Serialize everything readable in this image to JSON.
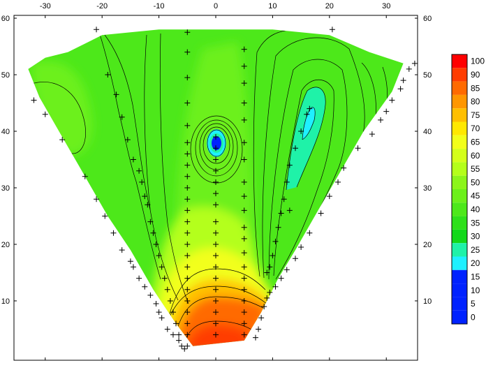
{
  "chart_data": {
    "type": "contour",
    "x_ticks": [
      -30,
      -20,
      -10,
      0,
      10,
      20,
      30
    ],
    "y_ticks": [
      10,
      20,
      30,
      40,
      50,
      60
    ],
    "xlim": [
      -35.5,
      35.5
    ],
    "ylim": [
      -0.5,
      60.5
    ],
    "grid": false,
    "legend_position": "right",
    "colorbar": {
      "levels": [
        100,
        90,
        85,
        80,
        75,
        70,
        65,
        60,
        55,
        50,
        45,
        40,
        35,
        30,
        25,
        20,
        15,
        10,
        5,
        0
      ],
      "colors": [
        "#ff0000",
        "#ff3c00",
        "#ff6a00",
        "#ff9600",
        "#ffbf00",
        "#ffe800",
        "#f2ff1a",
        "#d4ff1a",
        "#b4ff1a",
        "#8cf51a",
        "#6cf01a",
        "#4de81a",
        "#2ee01a",
        "#12d81a",
        "#1ff2a8",
        "#1ff0ff",
        "#0022ff",
        "#0022ff",
        "#0022ff",
        "#0022ff"
      ]
    },
    "regions": [
      {
        "value": 45,
        "color": "#6cf01a"
      },
      {
        "value": 55,
        "color": "#b4ff1a"
      },
      {
        "value": 65,
        "color": "#f2ff1a"
      },
      {
        "value": 75,
        "color": "#ffbf00"
      },
      {
        "value": 85,
        "color": "#ff6a00"
      },
      {
        "value": 90,
        "color": "#ff3c00"
      },
      {
        "value": 22,
        "color": "#1ff2a8"
      },
      {
        "value": 18,
        "color": "#1ff0ff"
      },
      {
        "value": 5,
        "color": "#0022ff"
      }
    ],
    "outline": [
      [
        -33,
        51
      ],
      [
        -30,
        53
      ],
      [
        -26,
        54
      ],
      [
        -20,
        57
      ],
      [
        -10,
        58
      ],
      [
        0,
        58
      ],
      [
        10,
        58
      ],
      [
        20,
        57
      ],
      [
        27,
        54
      ],
      [
        33,
        52
      ],
      [
        31,
        47
      ],
      [
        26,
        40
      ],
      [
        22,
        33
      ],
      [
        18,
        26
      ],
      [
        14,
        19
      ],
      [
        11,
        14
      ],
      [
        8,
        8
      ],
      [
        5,
        3
      ],
      [
        -4,
        2
      ],
      [
        -7,
        6
      ],
      [
        -11,
        12
      ],
      [
        -15,
        19
      ],
      [
        -19,
        25
      ],
      [
        -23,
        32
      ],
      [
        -27,
        39
      ],
      [
        -31,
        46
      ]
    ],
    "sample_points": [
      [
        -5,
        57.5
      ],
      [
        -5,
        54
      ],
      [
        -5,
        49.5
      ],
      [
        -5,
        45
      ],
      [
        -5,
        41
      ],
      [
        -5,
        38
      ],
      [
        -5,
        36
      ],
      [
        -5,
        34
      ],
      [
        -5,
        32
      ],
      [
        -5,
        30
      ],
      [
        -5,
        28
      ],
      [
        -5,
        26
      ],
      [
        -5,
        24
      ],
      [
        -5,
        22
      ],
      [
        -5,
        20
      ],
      [
        -5,
        18
      ],
      [
        -5,
        16
      ],
      [
        -5,
        14
      ],
      [
        -5,
        12
      ],
      [
        -5,
        10
      ],
      [
        -5,
        8
      ],
      [
        -5,
        6
      ],
      [
        -5,
        4
      ],
      [
        -5,
        2
      ],
      [
        0,
        39
      ],
      [
        0,
        37
      ],
      [
        0,
        35
      ],
      [
        0,
        33
      ],
      [
        0,
        31
      ],
      [
        0,
        29
      ],
      [
        0,
        27
      ],
      [
        0,
        24
      ],
      [
        0,
        22
      ],
      [
        0,
        20
      ],
      [
        0,
        18
      ],
      [
        0,
        16
      ],
      [
        0,
        14
      ],
      [
        0,
        12
      ],
      [
        0,
        10
      ],
      [
        0,
        8
      ],
      [
        0,
        6
      ],
      [
        0,
        4
      ],
      [
        5,
        54.5
      ],
      [
        5,
        51.5
      ],
      [
        5,
        48.5
      ],
      [
        5,
        45
      ],
      [
        5,
        42
      ],
      [
        5,
        38
      ],
      [
        5,
        35
      ],
      [
        5,
        31
      ],
      [
        5,
        28.5
      ],
      [
        5,
        26
      ],
      [
        5,
        23
      ],
      [
        5,
        21
      ],
      [
        5,
        18.5
      ],
      [
        5,
        16
      ],
      [
        5,
        14
      ],
      [
        5,
        12
      ],
      [
        5,
        10
      ],
      [
        5,
        8
      ],
      [
        5,
        6
      ],
      [
        5,
        4
      ],
      [
        -21,
        58
      ],
      [
        -19,
        50
      ],
      [
        -17.5,
        46.5
      ],
      [
        -16.5,
        42.5
      ],
      [
        -15.5,
        38.5
      ],
      [
        -14.5,
        35
      ],
      [
        -13.5,
        33
      ],
      [
        -13,
        31
      ],
      [
        -12.5,
        28.5
      ],
      [
        -12,
        27
      ],
      [
        -11.5,
        24
      ],
      [
        -11,
        22
      ],
      [
        -10.5,
        20
      ],
      [
        -10,
        18
      ],
      [
        -9.5,
        16
      ],
      [
        -9,
        14
      ],
      [
        -8.5,
        12
      ],
      [
        -8,
        10
      ],
      [
        -7.5,
        8
      ],
      [
        -7,
        6
      ],
      [
        -6.5,
        4
      ],
      [
        -32,
        45.5
      ],
      [
        -30,
        43
      ],
      [
        -27,
        38.5
      ],
      [
        -23,
        32
      ],
      [
        -21,
        28
      ],
      [
        -19.5,
        25
      ],
      [
        -18,
        22
      ],
      [
        -16.5,
        19
      ],
      [
        -15,
        17
      ],
      [
        -14.5,
        16
      ],
      [
        -13.5,
        14
      ],
      [
        -12.5,
        12.5
      ],
      [
        -11.5,
        11
      ],
      [
        -10.5,
        9.5
      ],
      [
        -10,
        8
      ],
      [
        -9.5,
        7
      ],
      [
        -8.5,
        5
      ],
      [
        -7.5,
        4
      ],
      [
        -6.5,
        3
      ],
      [
        -6,
        2
      ],
      [
        -5.5,
        1.5
      ],
      [
        9,
        15
      ],
      [
        9.5,
        16
      ],
      [
        10,
        18
      ],
      [
        10.5,
        20.5
      ],
      [
        11,
        23
      ],
      [
        11.5,
        25.5
      ],
      [
        12,
        28
      ],
      [
        12.5,
        31
      ],
      [
        13,
        34
      ],
      [
        14,
        37
      ],
      [
        15,
        40
      ],
      [
        16,
        43
      ],
      [
        16.5,
        44
      ],
      [
        13,
        26
      ],
      [
        7,
        3.5
      ],
      [
        7.5,
        5
      ],
      [
        8,
        7
      ],
      [
        8.5,
        9
      ],
      [
        9,
        10.5
      ],
      [
        9.5,
        11.5
      ],
      [
        10.5,
        12.5
      ],
      [
        11.5,
        14
      ],
      [
        12.5,
        15.5
      ],
      [
        14,
        17.5
      ],
      [
        15,
        19.5
      ],
      [
        16.5,
        22
      ],
      [
        18.5,
        25.5
      ],
      [
        20,
        28.5
      ],
      [
        21.5,
        31
      ],
      [
        22.5,
        33.5
      ],
      [
        25,
        37
      ],
      [
        27.5,
        39.5
      ],
      [
        29,
        42
      ],
      [
        30,
        43.5
      ],
      [
        31,
        45.5
      ],
      [
        32.5,
        47.5
      ],
      [
        33,
        49
      ],
      [
        34,
        51
      ],
      [
        35,
        52
      ],
      [
        20.5,
        58
      ]
    ]
  }
}
